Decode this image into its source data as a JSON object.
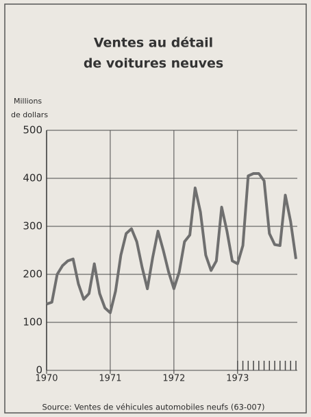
{
  "chart_data": {
    "type": "line",
    "title": [
      "Ventes au détail",
      "de voitures neuves"
    ],
    "y_label": [
      "Millions",
      "de dollars"
    ],
    "source": "Source: Ventes de véhicules automobiles neufs (63-007)",
    "categories": [
      "1970",
      null,
      null,
      null,
      null,
      null,
      null,
      null,
      null,
      null,
      null,
      null,
      "1971",
      null,
      null,
      null,
      null,
      null,
      null,
      null,
      null,
      null,
      null,
      null,
      "1972",
      null,
      null,
      null,
      null,
      null,
      null,
      null,
      null,
      null,
      null,
      null,
      "1973",
      null,
      null,
      null,
      null,
      null,
      null,
      null,
      null,
      null,
      null,
      null
    ],
    "series": [
      {
        "name": "Ventes",
        "color": "#6f6f6f",
        "values": [
          138,
          142,
          200,
          218,
          228,
          232,
          180,
          148,
          160,
          222,
          160,
          130,
          120,
          165,
          240,
          285,
          295,
          268,
          215,
          170,
          235,
          290,
          250,
          205,
          170,
          205,
          268,
          282,
          380,
          330,
          240,
          208,
          228,
          340,
          290,
          228,
          222,
          260,
          405,
          410,
          410,
          395,
          285,
          262,
          260,
          365,
          310,
          232
        ]
      }
    ],
    "ylim": [
      0,
      500
    ],
    "yticks": [
      0,
      100,
      200,
      300,
      400,
      500
    ],
    "grid": true
  }
}
